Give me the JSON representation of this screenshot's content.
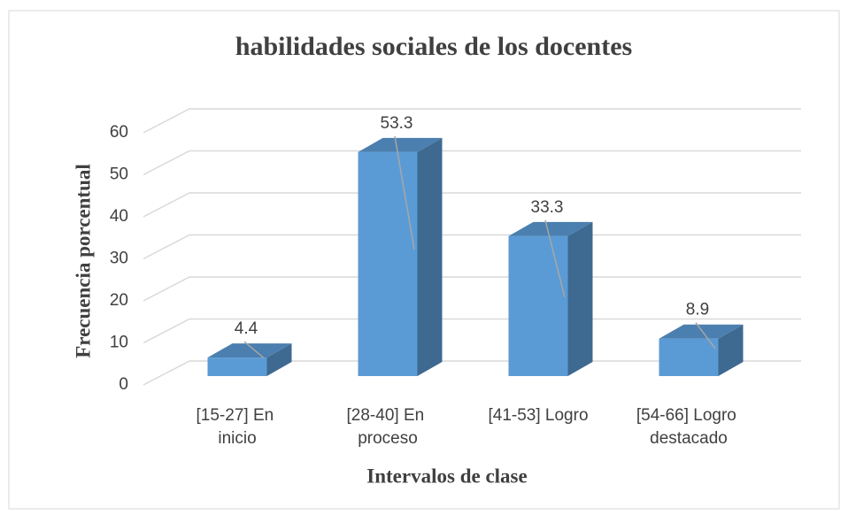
{
  "chart_data": {
    "type": "bar3d",
    "title": "habilidades sociales de los docentes",
    "xlabel": "Intervalos de clase",
    "ylabel": "Frecuencia porcentual",
    "categories": [
      "[15-27] En inicio",
      "[28-40] En proceso",
      "[41-53] Logro",
      "[54-66] Logro destacado"
    ],
    "values": [
      4.4,
      53.3,
      33.3,
      8.9
    ],
    "color": "#5b9bd5",
    "ylim": [
      0,
      60
    ],
    "yticks": [
      0,
      10,
      20,
      30,
      40,
      50,
      60
    ],
    "grid": true
  }
}
